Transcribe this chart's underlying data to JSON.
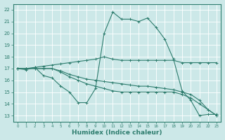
{
  "xlabel": "Humidex (Indice chaleur)",
  "xlim": [
    -0.5,
    23.5
  ],
  "ylim": [
    12.5,
    22.5
  ],
  "yticks": [
    13,
    14,
    15,
    16,
    17,
    18,
    19,
    20,
    21,
    22
  ],
  "xticks": [
    0,
    1,
    2,
    3,
    4,
    5,
    6,
    7,
    8,
    9,
    10,
    11,
    12,
    13,
    14,
    15,
    16,
    17,
    18,
    19,
    20,
    21,
    22,
    23
  ],
  "bg_color": "#cce8e8",
  "line_color": "#2e7d6e",
  "grid_color": "#ffffff",
  "lines": [
    {
      "x": [
        0,
        1,
        2,
        3,
        4,
        5,
        6,
        7,
        8,
        9,
        10,
        11,
        12,
        13,
        14,
        15,
        16,
        17,
        18,
        19,
        20,
        21,
        22,
        23
      ],
      "y": [
        17,
        17,
        17.1,
        17.2,
        17.3,
        17.4,
        17.5,
        17.6,
        17.7,
        17.8,
        18.0,
        17.8,
        17.7,
        17.7,
        17.7,
        17.7,
        17.7,
        17.7,
        17.7,
        17.5,
        17.5,
        17.5,
        17.5,
        17.5
      ]
    },
    {
      "x": [
        0,
        1,
        2,
        3,
        4,
        5,
        6,
        7,
        8,
        9,
        10,
        11,
        12,
        13,
        14,
        15,
        16,
        17,
        18,
        19,
        20,
        21,
        22,
        23
      ],
      "y": [
        17,
        16.9,
        17.1,
        16.4,
        16.2,
        15.5,
        15.0,
        14.1,
        14.1,
        15.3,
        20.0,
        21.8,
        21.2,
        21.2,
        21.0,
        21.3,
        20.5,
        19.5,
        17.8,
        15.1,
        14.3,
        13.0,
        13.1,
        13.1
      ]
    },
    {
      "x": [
        0,
        1,
        2,
        3,
        4,
        5,
        6,
        7,
        8,
        9,
        10,
        11,
        12,
        13,
        14,
        15,
        16,
        17,
        18,
        19,
        20,
        21,
        22,
        23
      ],
      "y": [
        17,
        17,
        17,
        17,
        17,
        16.7,
        16.3,
        16.0,
        15.7,
        15.5,
        15.3,
        15.1,
        15.0,
        15.0,
        15.0,
        15.0,
        15.0,
        15.0,
        15.0,
        14.8,
        14.5,
        14.0,
        13.5,
        13.0
      ]
    },
    {
      "x": [
        0,
        1,
        2,
        3,
        4,
        5,
        6,
        7,
        8,
        9,
        10,
        11,
        12,
        13,
        14,
        15,
        16,
        17,
        18,
        19,
        20,
        21,
        22,
        23
      ],
      "y": [
        17,
        17,
        17,
        17,
        17,
        16.8,
        16.5,
        16.3,
        16.1,
        16.0,
        15.9,
        15.8,
        15.7,
        15.6,
        15.5,
        15.5,
        15.4,
        15.3,
        15.2,
        15.0,
        14.8,
        14.3,
        13.5,
        13.0
      ]
    }
  ]
}
